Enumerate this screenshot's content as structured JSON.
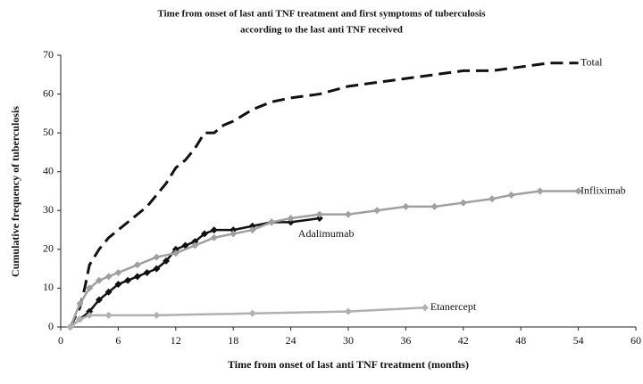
{
  "chart_data": {
    "type": "line",
    "title": "Time from onset of last anti TNF treatment and first symptoms of tuberculosis",
    "subtitle": "according to the last anti TNF received",
    "x_label": "Time from onset of last anti TNF treatment (months)",
    "y_label": "Cumulative frequency of tuberculosis",
    "xlim": [
      0,
      60
    ],
    "xticks": [
      0,
      6,
      12,
      18,
      24,
      30,
      36,
      42,
      48,
      54,
      60
    ],
    "ylim": [
      0,
      70
    ],
    "yticks": [
      0,
      10,
      20,
      30,
      40,
      50,
      60,
      70
    ],
    "grid": false,
    "series": [
      {
        "name": "Total",
        "color": "#111111",
        "dashed": true,
        "markers": false,
        "x": [
          1,
          2,
          2.5,
          3,
          4,
          5,
          6,
          7,
          8,
          9,
          10,
          11,
          12,
          13,
          14,
          15,
          16,
          17,
          18,
          20,
          22,
          24,
          27,
          30,
          33,
          36,
          39,
          42,
          45,
          48,
          51,
          54
        ],
        "values": [
          0,
          5,
          10,
          16,
          20,
          23,
          25,
          27,
          29,
          31,
          34,
          37,
          41,
          43,
          46,
          50,
          50,
          52,
          53,
          56,
          58,
          59,
          60,
          62,
          63,
          64,
          65,
          66,
          66,
          67,
          68,
          68
        ]
      },
      {
        "name": "Adalimumab",
        "color": "#111111",
        "dashed": false,
        "markers": true,
        "x": [
          1,
          2,
          3,
          4,
          5,
          6,
          7,
          8,
          9,
          10,
          11,
          12,
          13,
          14,
          15,
          16,
          18,
          20,
          22,
          24,
          27
        ],
        "values": [
          0,
          2,
          4,
          7,
          9,
          11,
          12,
          13,
          14,
          15,
          17,
          20,
          21,
          22,
          24,
          25,
          25,
          26,
          27,
          27,
          28
        ]
      },
      {
        "name": "Infliximab",
        "color": "#a0a0a0",
        "dashed": false,
        "markers": true,
        "x": [
          1,
          2,
          3,
          4,
          5,
          6,
          8,
          10,
          12,
          14,
          16,
          18,
          20,
          22,
          24,
          27,
          30,
          33,
          36,
          39,
          42,
          45,
          47,
          50,
          54
        ],
        "values": [
          0,
          6,
          10,
          12,
          13,
          14,
          16,
          18,
          19,
          21,
          23,
          24,
          25,
          27,
          28,
          29,
          29,
          30,
          31,
          31,
          32,
          33,
          34,
          35,
          35
        ]
      },
      {
        "name": "Etanercept",
        "color": "#b0b0b0",
        "dashed": false,
        "markers": true,
        "x": [
          1,
          2,
          3,
          5,
          10,
          20,
          30,
          38
        ],
        "values": [
          0,
          2,
          3,
          3,
          3,
          3.5,
          4,
          5
        ]
      }
    ]
  }
}
